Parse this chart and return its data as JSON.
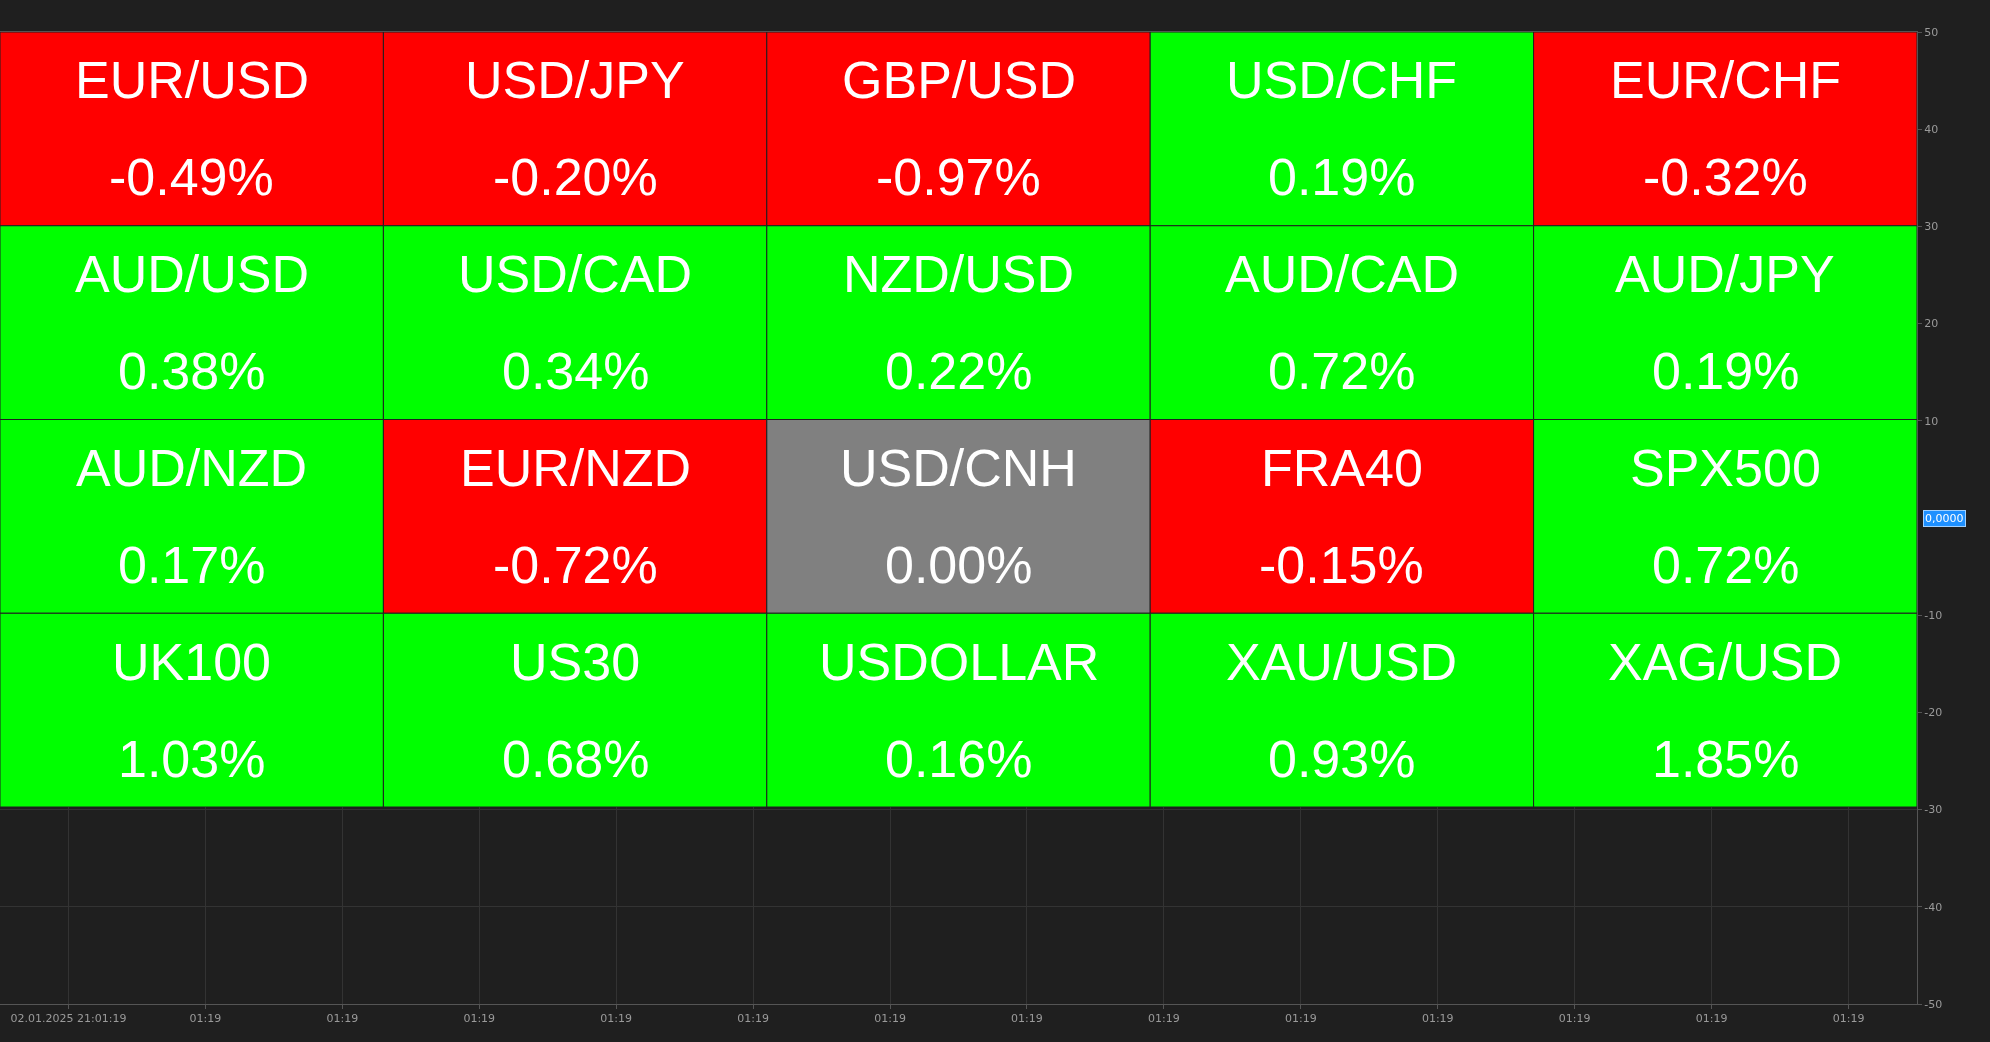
{
  "chart_data": [
    {
      "type": "other",
      "categories": [
        "EUR/USD",
        "USD/JPY",
        "GBP/USD",
        "USD/CHF",
        "EUR/CHF",
        "AUD/USD",
        "USD/CAD",
        "NZD/USD",
        "AUD/CAD",
        "AUD/JPY",
        "AUD/NZD",
        "EUR/NZD",
        "USD/CNH",
        "FRA40",
        "SPX500",
        "UK100",
        "US30",
        "USDOLLAR",
        "XAU/USD",
        "XAG/USD"
      ],
      "values": [
        -0.49,
        -0.2,
        -0.97,
        0.19,
        -0.32,
        0.38,
        0.34,
        0.22,
        0.72,
        0.19,
        0.17,
        -0.72,
        0.0,
        -0.15,
        0.72,
        1.03,
        0.68,
        0.16,
        0.93,
        1.85
      ],
      "value_labels": [
        "-0.49%",
        "-0.20%",
        "-0.97%",
        "0.19%",
        "-0.32%",
        "0.38%",
        "0.34%",
        "0.22%",
        "0.72%",
        "0.19%",
        "0.17%",
        "-0.72%",
        "0.00%",
        "-0.15%",
        "0.72%",
        "1.03%",
        "0.68%",
        "0.16%",
        "0.93%",
        "1.85%"
      ],
      "colors": [
        "#ff0000",
        "#ff0000",
        "#ff0000",
        "#00ff00",
        "#ff0000",
        "#00ff00",
        "#00ff00",
        "#00ff00",
        "#00ff00",
        "#00ff00",
        "#00ff00",
        "#ff0000",
        "#808080",
        "#ff0000",
        "#00ff00",
        "#00ff00",
        "#00ff00",
        "#00ff00",
        "#00ff00",
        "#00ff00"
      ]
    },
    {
      "type": "line",
      "categories": [
        "02.01.2025 21:01:19",
        "01:19",
        "01:19",
        "01:19",
        "01:19",
        "01:19",
        "01:19",
        "01:19",
        "01:19",
        "01:19",
        "01:19",
        "01:19",
        "01:19",
        "01:19"
      ],
      "ylim": [
        -50,
        50
      ],
      "yticks": [
        50,
        40,
        30,
        20,
        10,
        -10,
        -20,
        -30,
        -40,
        -50
      ],
      "annotations": [
        "0,0000"
      ],
      "grid": true
    }
  ]
}
